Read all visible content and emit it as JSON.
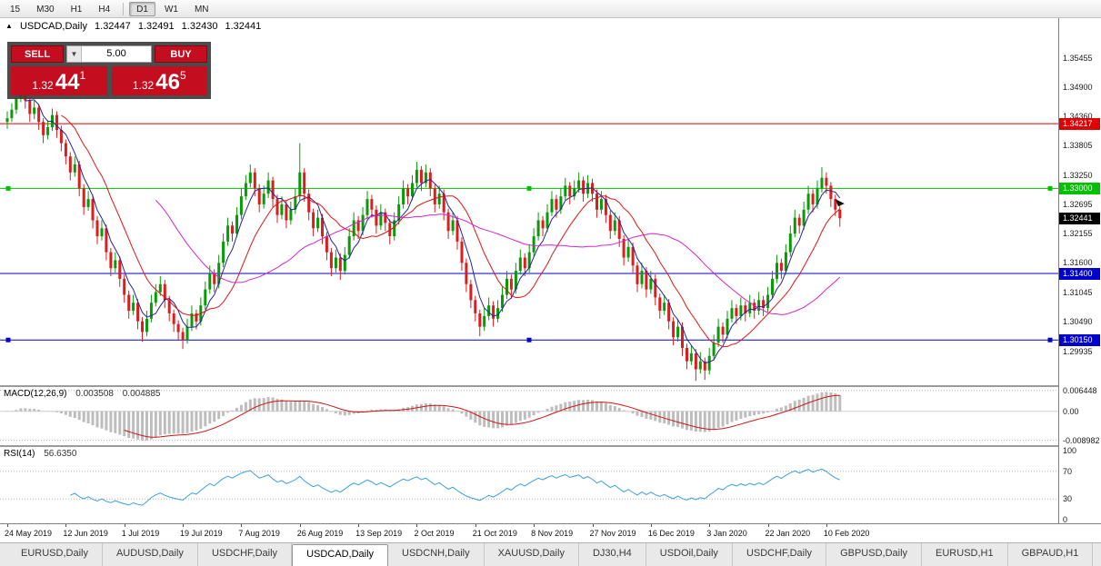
{
  "toolbar": {
    "timeframes": [
      "15",
      "M30",
      "H1",
      "H4",
      "D1",
      "W1",
      "MN"
    ],
    "active": "D1",
    "separator_after_index": 3
  },
  "chart": {
    "header": {
      "icon": "▲",
      "title": "USDCAD,Daily",
      "open": "1.32447",
      "high": "1.32491",
      "low": "1.32430",
      "close": "1.32441"
    },
    "trade_panel": {
      "sell_label": "SELL",
      "buy_label": "BUY",
      "volume": "5.00",
      "bid_small": "1.32",
      "bid_big": "44",
      "bid_sup": "1",
      "ask_small": "1.32",
      "ask_big": "46",
      "ask_sup": "5"
    }
  },
  "chart_data": {
    "type": "candlestick",
    "symbol": "USDCAD",
    "timeframe": "Daily",
    "price_range": {
      "top": 1.362,
      "bottom": 1.293
    },
    "colors": {
      "up": "#089b08",
      "down": "#dd1d1d",
      "background": "#ffffff"
    },
    "y_axis_labels": [
      "1.35455",
      "1.34900",
      "1.34360",
      "1.33805",
      "1.33250",
      "1.32695",
      "1.32155",
      "1.31600",
      "1.31045",
      "1.30490",
      "1.29935"
    ],
    "x_labels": [
      "24 May 2019",
      "12 Jun 2019",
      "1 Jul 2019",
      "19 Jul 2019",
      "7 Aug 2019",
      "26 Aug 2019",
      "13 Sep 2019",
      "2 Oct 2019",
      "21 Oct 2019",
      "8 Nov 2019",
      "27 Nov 2019",
      "16 Dec 2019",
      "3 Jan 2020",
      "22 Jan 2020",
      "10 Feb 2020"
    ],
    "x_label_indices": [
      0,
      13,
      26,
      39,
      52,
      65,
      78,
      91,
      104,
      117,
      130,
      143,
      156,
      169,
      182
    ],
    "horizontal_lines": [
      {
        "price": 1.34217,
        "label": "1.34217",
        "color": "#e00000",
        "handles": false
      },
      {
        "price": 1.33,
        "label": "1.33000",
        "color": "#00c000",
        "handles": true
      },
      {
        "price": 1.314,
        "label": "1.31400",
        "color": "#0000d0",
        "handles": false
      },
      {
        "price": 1.3015,
        "label": "1.30150",
        "color": "#0000d0",
        "handles": true
      }
    ],
    "current_price": {
      "value": 1.32441,
      "label": "1.32441",
      "tag_color": "#000000"
    },
    "moving_averages": [
      {
        "period": 5,
        "color": "#24249c"
      },
      {
        "period": 13,
        "color": "#e01414"
      },
      {
        "period": 34,
        "color": "#d822cc"
      }
    ],
    "indicators": {
      "macd": {
        "label": "MACD(12,26,9)",
        "values_text": [
          "0.003508",
          "0.004885"
        ],
        "params": [
          12,
          26,
          9
        ],
        "axis_labels": [
          "0.006448",
          "0.00",
          "-0.008982"
        ],
        "range": {
          "top": 0.0075,
          "bottom": -0.0105
        },
        "histogram_color": "#bdbdbd",
        "signal_color": "#d01414"
      },
      "rsi": {
        "label": "RSI(14)",
        "value_text": "56.6350",
        "period": 14,
        "axis_labels": [
          "100",
          "70",
          "30",
          "0"
        ],
        "levels": [
          70,
          30
        ],
        "line_color": "#3a9fdc"
      }
    },
    "candles": [
      [
        1.3425,
        1.3445,
        1.3412,
        1.3432
      ],
      [
        1.3432,
        1.346,
        1.3425,
        1.3448
      ],
      [
        1.3448,
        1.3482,
        1.344,
        1.347
      ],
      [
        1.347,
        1.352,
        1.3462,
        1.3505
      ],
      [
        1.3505,
        1.3512,
        1.345,
        1.3465
      ],
      [
        1.3465,
        1.3472,
        1.3425,
        1.344
      ],
      [
        1.344,
        1.3465,
        1.343,
        1.3452
      ],
      [
        1.3452,
        1.3458,
        1.341,
        1.3425
      ],
      [
        1.3425,
        1.3432,
        1.3385,
        1.34
      ],
      [
        1.34,
        1.3428,
        1.3392,
        1.3415
      ],
      [
        1.3415,
        1.345,
        1.3408,
        1.3438
      ],
      [
        1.3438,
        1.3445,
        1.3395,
        1.341
      ],
      [
        1.341,
        1.3418,
        1.337,
        1.3385
      ],
      [
        1.3385,
        1.3392,
        1.3345,
        1.336
      ],
      [
        1.336,
        1.3368,
        1.3315,
        1.333
      ],
      [
        1.333,
        1.336,
        1.3322,
        1.3345
      ],
      [
        1.3345,
        1.3352,
        1.3285,
        1.33
      ],
      [
        1.33,
        1.3308,
        1.325,
        1.3265
      ],
      [
        1.3265,
        1.3295,
        1.3258,
        1.328
      ],
      [
        1.328,
        1.3288,
        1.3225,
        1.324
      ],
      [
        1.324,
        1.3248,
        1.3195,
        1.321
      ],
      [
        1.321,
        1.324,
        1.3202,
        1.3225
      ],
      [
        1.3225,
        1.3232,
        1.3165,
        1.318
      ],
      [
        1.318,
        1.3188,
        1.3135,
        1.315
      ],
      [
        1.315,
        1.318,
        1.3142,
        1.3165
      ],
      [
        1.3165,
        1.3172,
        1.3115,
        1.313
      ],
      [
        1.313,
        1.3138,
        1.3085,
        1.31
      ],
      [
        1.31,
        1.3108,
        1.3055,
        1.307
      ],
      [
        1.307,
        1.31,
        1.3062,
        1.3085
      ],
      [
        1.3085,
        1.3092,
        1.3035,
        1.305
      ],
      [
        1.305,
        1.3058,
        1.3012,
        1.303
      ],
      [
        1.303,
        1.307,
        1.3022,
        1.3055
      ],
      [
        1.3055,
        1.31,
        1.3048,
        1.3085
      ],
      [
        1.3085,
        1.312,
        1.3078,
        1.3105
      ],
      [
        1.3105,
        1.3135,
        1.3098,
        1.312
      ],
      [
        1.312,
        1.3128,
        1.3075,
        1.309
      ],
      [
        1.309,
        1.3098,
        1.305,
        1.3065
      ],
      [
        1.3065,
        1.3072,
        1.303,
        1.3045
      ],
      [
        1.3045,
        1.3052,
        1.3015,
        1.303
      ],
      [
        1.303,
        1.3038,
        1.2998,
        1.3015
      ],
      [
        1.3015,
        1.3055,
        1.3008,
        1.304
      ],
      [
        1.304,
        1.308,
        1.3032,
        1.3065
      ],
      [
        1.3065,
        1.3072,
        1.3035,
        1.305
      ],
      [
        1.305,
        1.3095,
        1.3042,
        1.308
      ],
      [
        1.308,
        1.3125,
        1.3072,
        1.311
      ],
      [
        1.311,
        1.3155,
        1.3102,
        1.314
      ],
      [
        1.314,
        1.3148,
        1.3105,
        1.312
      ],
      [
        1.312,
        1.3175,
        1.3112,
        1.316
      ],
      [
        1.316,
        1.3215,
        1.3152,
        1.32
      ],
      [
        1.32,
        1.3245,
        1.3192,
        1.323
      ],
      [
        1.323,
        1.3238,
        1.32,
        1.3215
      ],
      [
        1.3215,
        1.3265,
        1.3208,
        1.325
      ],
      [
        1.325,
        1.33,
        1.3242,
        1.3285
      ],
      [
        1.3285,
        1.3325,
        1.3278,
        1.331
      ],
      [
        1.331,
        1.3345,
        1.3302,
        1.333
      ],
      [
        1.333,
        1.3338,
        1.3285,
        1.33
      ],
      [
        1.33,
        1.3308,
        1.3255,
        1.327
      ],
      [
        1.327,
        1.3305,
        1.3262,
        1.329
      ],
      [
        1.329,
        1.333,
        1.3282,
        1.3315
      ],
      [
        1.3315,
        1.3322,
        1.3265,
        1.328
      ],
      [
        1.328,
        1.3288,
        1.3235,
        1.325
      ],
      [
        1.325,
        1.3285,
        1.3242,
        1.327
      ],
      [
        1.327,
        1.3278,
        1.3225,
        1.324
      ],
      [
        1.324,
        1.3275,
        1.3232,
        1.326
      ],
      [
        1.326,
        1.33,
        1.3252,
        1.3285
      ],
      [
        1.3285,
        1.3385,
        1.3278,
        1.333
      ],
      [
        1.333,
        1.3338,
        1.3275,
        1.329
      ],
      [
        1.329,
        1.3298,
        1.324,
        1.3255
      ],
      [
        1.3255,
        1.3262,
        1.321,
        1.3225
      ],
      [
        1.3225,
        1.326,
        1.3218,
        1.3245
      ],
      [
        1.3245,
        1.3252,
        1.3195,
        1.321
      ],
      [
        1.321,
        1.3218,
        1.3165,
        1.318
      ],
      [
        1.318,
        1.3188,
        1.3135,
        1.315
      ],
      [
        1.315,
        1.3185,
        1.3142,
        1.317
      ],
      [
        1.317,
        1.3178,
        1.3128,
        1.3145
      ],
      [
        1.3145,
        1.319,
        1.3138,
        1.3175
      ],
      [
        1.3175,
        1.3225,
        1.3168,
        1.321
      ],
      [
        1.321,
        1.3255,
        1.3202,
        1.324
      ],
      [
        1.324,
        1.3248,
        1.3205,
        1.322
      ],
      [
        1.322,
        1.3265,
        1.3212,
        1.325
      ],
      [
        1.325,
        1.3295,
        1.3242,
        1.328
      ],
      [
        1.328,
        1.3288,
        1.3245,
        1.326
      ],
      [
        1.326,
        1.3268,
        1.3215,
        1.323
      ],
      [
        1.323,
        1.327,
        1.3222,
        1.3255
      ],
      [
        1.3255,
        1.3262,
        1.322,
        1.3235
      ],
      [
        1.3235,
        1.3242,
        1.3195,
        1.321
      ],
      [
        1.321,
        1.3255,
        1.3202,
        1.324
      ],
      [
        1.324,
        1.3285,
        1.3232,
        1.327
      ],
      [
        1.327,
        1.3315,
        1.3262,
        1.33
      ],
      [
        1.33,
        1.3308,
        1.327,
        1.3285
      ],
      [
        1.3285,
        1.3325,
        1.3278,
        1.331
      ],
      [
        1.331,
        1.335,
        1.3302,
        1.3335
      ],
      [
        1.3335,
        1.3342,
        1.3295,
        1.331
      ],
      [
        1.331,
        1.3345,
        1.3302,
        1.333
      ],
      [
        1.333,
        1.3338,
        1.3285,
        1.33
      ],
      [
        1.33,
        1.3308,
        1.3255,
        1.327
      ],
      [
        1.327,
        1.3305,
        1.3262,
        1.329
      ],
      [
        1.329,
        1.3298,
        1.324,
        1.3255
      ],
      [
        1.3255,
        1.3262,
        1.3205,
        1.322
      ],
      [
        1.322,
        1.3255,
        1.3212,
        1.324
      ],
      [
        1.324,
        1.3248,
        1.3185,
        1.32
      ],
      [
        1.32,
        1.3208,
        1.3145,
        1.316
      ],
      [
        1.316,
        1.3168,
        1.3105,
        1.312
      ],
      [
        1.312,
        1.3128,
        1.3075,
        1.309
      ],
      [
        1.309,
        1.3098,
        1.305,
        1.3065
      ],
      [
        1.3065,
        1.3072,
        1.3022,
        1.304
      ],
      [
        1.304,
        1.3075,
        1.3032,
        1.306
      ],
      [
        1.306,
        1.3095,
        1.3052,
        1.308
      ],
      [
        1.308,
        1.3088,
        1.304,
        1.3055
      ],
      [
        1.3055,
        1.309,
        1.3048,
        1.3075
      ],
      [
        1.3075,
        1.3115,
        1.3068,
        1.31
      ],
      [
        1.31,
        1.3145,
        1.3092,
        1.313
      ],
      [
        1.313,
        1.3138,
        1.3095,
        1.311
      ],
      [
        1.311,
        1.316,
        1.3102,
        1.3145
      ],
      [
        1.3145,
        1.3185,
        1.3138,
        1.317
      ],
      [
        1.317,
        1.3178,
        1.3135,
        1.315
      ],
      [
        1.315,
        1.3195,
        1.3142,
        1.318
      ],
      [
        1.318,
        1.3225,
        1.3172,
        1.321
      ],
      [
        1.321,
        1.3255,
        1.3202,
        1.324
      ],
      [
        1.324,
        1.3248,
        1.321,
        1.3225
      ],
      [
        1.3225,
        1.327,
        1.3218,
        1.3255
      ],
      [
        1.3255,
        1.3295,
        1.3248,
        1.328
      ],
      [
        1.328,
        1.3288,
        1.3245,
        1.326
      ],
      [
        1.326,
        1.33,
        1.3252,
        1.3285
      ],
      [
        1.3285,
        1.332,
        1.3278,
        1.3305
      ],
      [
        1.3305,
        1.3312,
        1.327,
        1.3285
      ],
      [
        1.3285,
        1.3315,
        1.3278,
        1.33
      ],
      [
        1.33,
        1.333,
        1.3292,
        1.3315
      ],
      [
        1.3315,
        1.3322,
        1.3275,
        1.329
      ],
      [
        1.329,
        1.3325,
        1.3282,
        1.331
      ],
      [
        1.331,
        1.3318,
        1.3275,
        1.329
      ],
      [
        1.329,
        1.3298,
        1.3245,
        1.326
      ],
      [
        1.326,
        1.3295,
        1.3252,
        1.328
      ],
      [
        1.328,
        1.3288,
        1.3235,
        1.325
      ],
      [
        1.325,
        1.3258,
        1.3205,
        1.322
      ],
      [
        1.322,
        1.3255,
        1.3212,
        1.324
      ],
      [
        1.324,
        1.3248,
        1.319,
        1.3205
      ],
      [
        1.3205,
        1.3212,
        1.3155,
        1.317
      ],
      [
        1.317,
        1.3205,
        1.3162,
        1.319
      ],
      [
        1.319,
        1.3198,
        1.314,
        1.3155
      ],
      [
        1.3155,
        1.3162,
        1.3105,
        1.312
      ],
      [
        1.312,
        1.316,
        1.3112,
        1.3145
      ],
      [
        1.3145,
        1.3152,
        1.3095,
        1.311
      ],
      [
        1.311,
        1.3145,
        1.3102,
        1.313
      ],
      [
        1.313,
        1.3138,
        1.308,
        1.3095
      ],
      [
        1.3095,
        1.3102,
        1.3055,
        1.307
      ],
      [
        1.307,
        1.31,
        1.3062,
        1.3085
      ],
      [
        1.3085,
        1.3092,
        1.3035,
        1.305
      ],
      [
        1.305,
        1.3058,
        1.3005,
        1.302
      ],
      [
        1.302,
        1.3055,
        1.3012,
        1.304
      ],
      [
        1.304,
        1.3048,
        1.2985,
        1.3
      ],
      [
        1.3,
        1.3008,
        1.296,
        1.2975
      ],
      [
        1.2975,
        1.3005,
        1.2968,
        1.299
      ],
      [
        1.299,
        1.2998,
        1.2938,
        1.296
      ],
      [
        1.296,
        1.2992,
        1.2952,
        1.2975
      ],
      [
        1.2975,
        1.2982,
        1.294,
        1.2958
      ],
      [
        1.2958,
        1.3,
        1.295,
        1.2985
      ],
      [
        1.2985,
        1.3025,
        1.2978,
        1.301
      ],
      [
        1.301,
        1.3055,
        1.3002,
        1.304
      ],
      [
        1.304,
        1.3048,
        1.301,
        1.3025
      ],
      [
        1.3025,
        1.307,
        1.3018,
        1.3055
      ],
      [
        1.3055,
        1.309,
        1.3048,
        1.3075
      ],
      [
        1.3075,
        1.3082,
        1.3045,
        1.306
      ],
      [
        1.306,
        1.3095,
        1.3052,
        1.308
      ],
      [
        1.308,
        1.3088,
        1.305,
        1.3065
      ],
      [
        1.3065,
        1.31,
        1.3058,
        1.3085
      ],
      [
        1.3085,
        1.3092,
        1.3055,
        1.307
      ],
      [
        1.307,
        1.3105,
        1.3062,
        1.309
      ],
      [
        1.309,
        1.3098,
        1.306,
        1.3075
      ],
      [
        1.3075,
        1.3115,
        1.3068,
        1.31
      ],
      [
        1.31,
        1.3145,
        1.3092,
        1.313
      ],
      [
        1.313,
        1.3175,
        1.3122,
        1.316
      ],
      [
        1.316,
        1.3168,
        1.313,
        1.3145
      ],
      [
        1.3145,
        1.3195,
        1.3138,
        1.318
      ],
      [
        1.318,
        1.323,
        1.3172,
        1.3215
      ],
      [
        1.3215,
        1.326,
        1.3208,
        1.3245
      ],
      [
        1.3245,
        1.3252,
        1.3215,
        1.323
      ],
      [
        1.323,
        1.3275,
        1.3222,
        1.326
      ],
      [
        1.326,
        1.3305,
        1.3252,
        1.329
      ],
      [
        1.329,
        1.3298,
        1.3255,
        1.327
      ],
      [
        1.327,
        1.3315,
        1.3262,
        1.33
      ],
      [
        1.33,
        1.334,
        1.3292,
        1.332
      ],
      [
        1.332,
        1.333,
        1.329,
        1.3305
      ],
      [
        1.3305,
        1.3312,
        1.3265,
        1.328
      ],
      [
        1.328,
        1.3288,
        1.3248,
        1.326
      ],
      [
        1.326,
        1.3268,
        1.3228,
        1.3244
      ]
    ]
  },
  "tabs": {
    "items": [
      "EURUSD,Daily",
      "AUDUSD,Daily",
      "USDCHF,Daily",
      "USDCAD,Daily",
      "USDCNH,Daily",
      "XAUUSD,Daily",
      "DJ30,H4",
      "USDOil,Daily",
      "USDCHF,Daily",
      "GBPUSD,Daily",
      "EURUSD,H1",
      "GBPAUD,H1"
    ],
    "active_index": 3
  }
}
